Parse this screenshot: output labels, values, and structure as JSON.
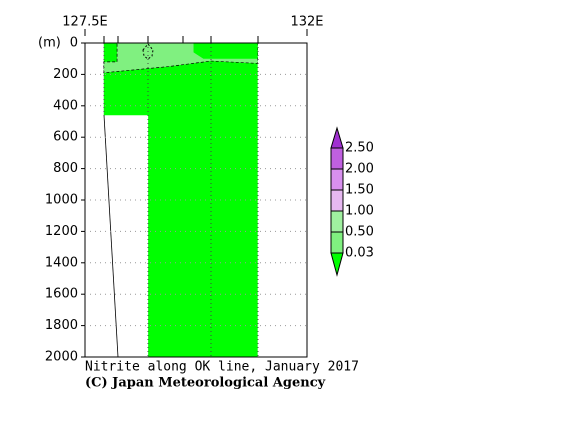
{
  "chart_data": {
    "type": "contour",
    "title": "Nitrite along OK line, January 2017",
    "credit": "(C) Japan Meteorological Agency",
    "y_unit": "(m)",
    "xlim": [
      127.5,
      132
    ],
    "xticks": [
      {
        "value": 127.5,
        "label": "127.5E"
      },
      {
        "value": 132,
        "label": "132E"
      }
    ],
    "ylim": [
      0,
      2000
    ],
    "yticks": [
      0,
      200,
      400,
      600,
      800,
      1000,
      1200,
      1400,
      1600,
      1800,
      2000
    ],
    "y_reversed": true,
    "grid": true,
    "levels": [
      0.03,
      {
        "value": 0.5,
        "label": "0.50"
      },
      {
        "value": 1,
        "label": "1.00"
      },
      {
        "value": 1.5,
        "label": "1.50"
      },
      {
        "value": 2,
        "label": "2.00"
      },
      {
        "value": 2.5,
        "label": "2.50"
      }
    ],
    "colors": [
      "#00ff00",
      "#80f080",
      "#a0f0a0",
      "#e6b8f0",
      "#d890ee",
      "#c060e0",
      "#a030d0"
    ],
    "fills": [
      {
        "color": "#00ff00",
        "lon": [
          127.88,
          131.0,
          131.0,
          128.78,
          128.78,
          127.88
        ],
        "depth": [
          0,
          0,
          2000,
          2000,
          460,
          460
        ]
      },
      {
        "color": "#80f080",
        "lon": [
          128.15,
          131.0,
          131.0,
          130.05,
          129.2,
          128.2,
          127.88,
          127.88,
          128.15
        ],
        "depth": [
          0,
          0,
          130,
          115,
          150,
          180,
          190,
          120,
          120
        ]
      },
      {
        "color": "#00ff00",
        "lon": [
          129.7,
          131.0,
          131.0,
          129.9,
          129.7
        ],
        "depth": [
          0,
          0,
          100,
          100,
          60
        ]
      }
    ]
  }
}
